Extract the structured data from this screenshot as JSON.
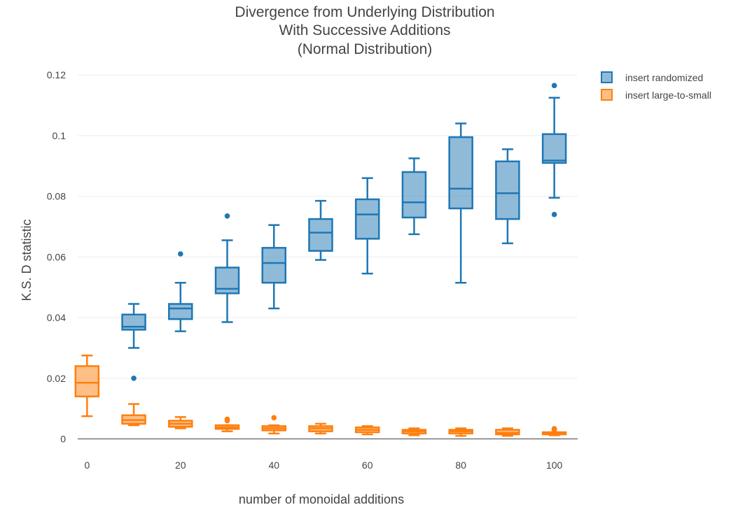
{
  "chart_data": {
    "type": "box",
    "title_lines": [
      "Divergence from Underlying Distribution",
      "With Successive Additions",
      "(Normal Distribution)"
    ],
    "xlabel": "number of monoidal additions",
    "ylabel": "K.S. D statistic",
    "xlim": [
      -2,
      105
    ],
    "ylim": [
      -0.0015,
      0.1235
    ],
    "x_ticks": [
      0,
      20,
      40,
      60,
      80,
      100
    ],
    "x_tick_labels": [
      "0",
      "20",
      "40",
      "60",
      "80",
      "100"
    ],
    "y_ticks": [
      0,
      0.02,
      0.04,
      0.06,
      0.08,
      0.1,
      0.12
    ],
    "y_tick_labels": [
      "0",
      "0.02",
      "0.04",
      "0.06",
      "0.08",
      "0.1",
      "0.12"
    ],
    "grid": true,
    "legend_position": "top-right",
    "series": [
      {
        "name": "insert randomized",
        "color": "#1f77b4",
        "boxes": [
          {
            "x": 10,
            "q1": 0.036,
            "median": 0.037,
            "q3": 0.041,
            "whisker_low": 0.03,
            "whisker_high": 0.0445,
            "outliers": [
              0.02
            ]
          },
          {
            "x": 20,
            "q1": 0.0395,
            "median": 0.043,
            "q3": 0.0445,
            "whisker_low": 0.0355,
            "whisker_high": 0.0515,
            "outliers": [
              0.061
            ]
          },
          {
            "x": 30,
            "q1": 0.048,
            "median": 0.0495,
            "q3": 0.0565,
            "whisker_low": 0.0385,
            "whisker_high": 0.0655,
            "outliers": [
              0.0735
            ]
          },
          {
            "x": 40,
            "q1": 0.0515,
            "median": 0.058,
            "q3": 0.063,
            "whisker_low": 0.043,
            "whisker_high": 0.0705,
            "outliers": []
          },
          {
            "x": 50,
            "q1": 0.062,
            "median": 0.068,
            "q3": 0.0725,
            "whisker_low": 0.059,
            "whisker_high": 0.0785,
            "outliers": []
          },
          {
            "x": 60,
            "q1": 0.066,
            "median": 0.074,
            "q3": 0.079,
            "whisker_low": 0.0545,
            "whisker_high": 0.086,
            "outliers": []
          },
          {
            "x": 70,
            "q1": 0.073,
            "median": 0.078,
            "q3": 0.088,
            "whisker_low": 0.0675,
            "whisker_high": 0.0925,
            "outliers": []
          },
          {
            "x": 80,
            "q1": 0.076,
            "median": 0.0825,
            "q3": 0.0995,
            "whisker_low": 0.0515,
            "whisker_high": 0.104,
            "outliers": []
          },
          {
            "x": 90,
            "q1": 0.0725,
            "median": 0.081,
            "q3": 0.0915,
            "whisker_low": 0.0645,
            "whisker_high": 0.0955,
            "outliers": []
          },
          {
            "x": 100,
            "q1": 0.091,
            "median": 0.0918,
            "q3": 0.1005,
            "whisker_low": 0.0795,
            "whisker_high": 0.1125,
            "outliers": [
              0.074,
              0.1165
            ]
          }
        ]
      },
      {
        "name": "insert large-to-small",
        "color": "#ff7f0e",
        "boxes": [
          {
            "x": 0,
            "q1": 0.014,
            "median": 0.0185,
            "q3": 0.024,
            "whisker_low": 0.0075,
            "whisker_high": 0.0275,
            "outliers": []
          },
          {
            "x": 10,
            "q1": 0.005,
            "median": 0.0062,
            "q3": 0.0078,
            "whisker_low": 0.0045,
            "whisker_high": 0.0115,
            "outliers": []
          },
          {
            "x": 20,
            "q1": 0.004,
            "median": 0.005,
            "q3": 0.006,
            "whisker_low": 0.0035,
            "whisker_high": 0.0072,
            "outliers": []
          },
          {
            "x": 30,
            "q1": 0.0033,
            "median": 0.0038,
            "q3": 0.0045,
            "whisker_low": 0.0025,
            "whisker_high": 0.0045,
            "outliers": [
              0.006,
              0.0065
            ]
          },
          {
            "x": 40,
            "q1": 0.0028,
            "median": 0.0035,
            "q3": 0.0042,
            "whisker_low": 0.0018,
            "whisker_high": 0.0045,
            "outliers": [
              0.007
            ]
          },
          {
            "x": 50,
            "q1": 0.0025,
            "median": 0.0035,
            "q3": 0.0042,
            "whisker_low": 0.0018,
            "whisker_high": 0.005,
            "outliers": []
          },
          {
            "x": 60,
            "q1": 0.0022,
            "median": 0.003,
            "q3": 0.0038,
            "whisker_low": 0.0015,
            "whisker_high": 0.0042,
            "outliers": []
          },
          {
            "x": 70,
            "q1": 0.0018,
            "median": 0.0025,
            "q3": 0.003,
            "whisker_low": 0.0012,
            "whisker_high": 0.0035,
            "outliers": []
          },
          {
            "x": 80,
            "q1": 0.0018,
            "median": 0.0025,
            "q3": 0.003,
            "whisker_low": 0.001,
            "whisker_high": 0.0035,
            "outliers": []
          },
          {
            "x": 90,
            "q1": 0.0015,
            "median": 0.002,
            "q3": 0.003,
            "whisker_low": 0.001,
            "whisker_high": 0.0035,
            "outliers": []
          },
          {
            "x": 100,
            "q1": 0.0015,
            "median": 0.0018,
            "q3": 0.0022,
            "whisker_low": 0.0012,
            "whisker_high": 0.0022,
            "outliers": [
              0.003,
              0.0034
            ]
          }
        ]
      }
    ]
  }
}
